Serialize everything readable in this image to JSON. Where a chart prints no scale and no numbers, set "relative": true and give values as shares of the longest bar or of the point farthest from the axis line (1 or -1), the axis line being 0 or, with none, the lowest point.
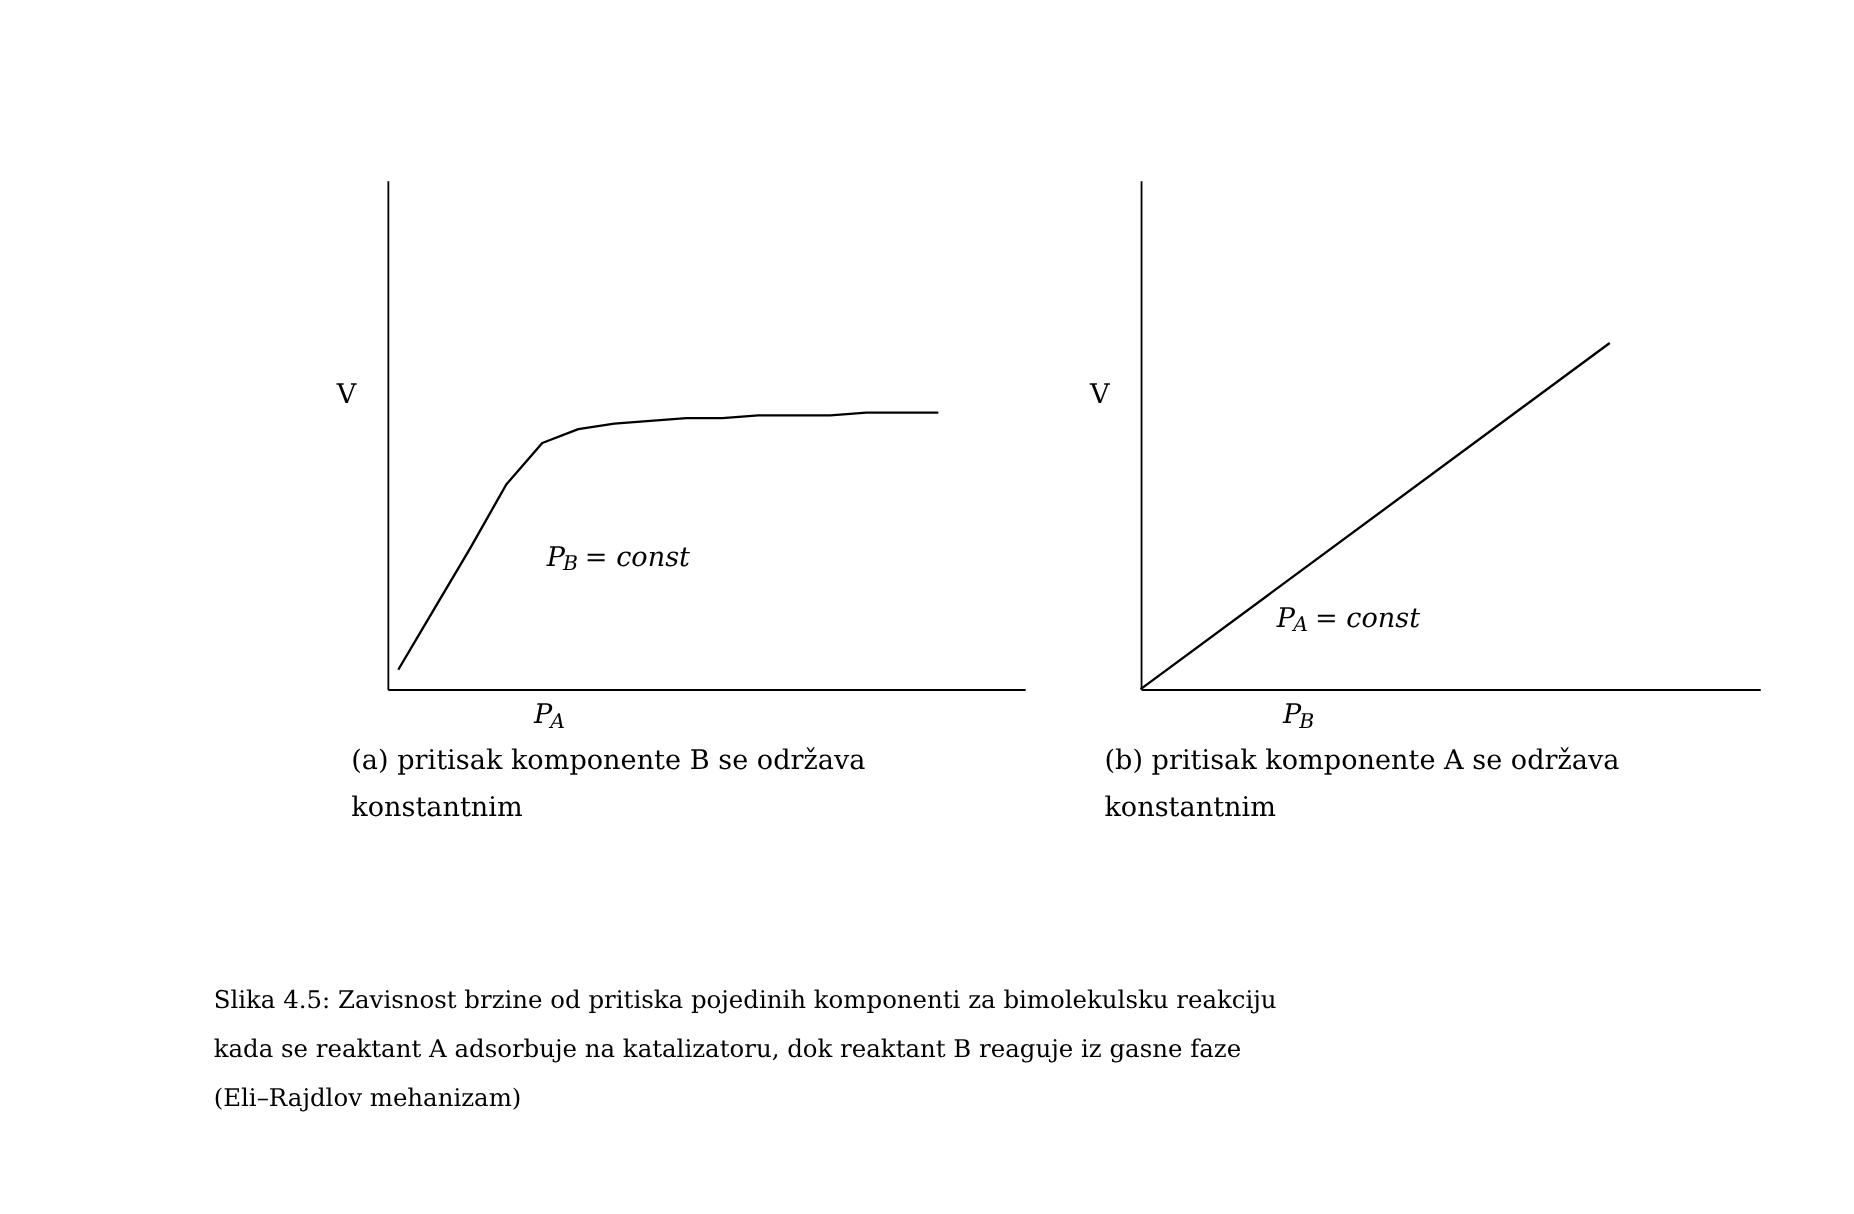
{
  "chart_data": [
    {
      "type": "line",
      "relative": true,
      "color": "#000000",
      "xlabel": "P$_{A}$",
      "ylabel": "V",
      "categories": [
        null,
        null,
        null,
        null,
        null,
        null,
        null,
        null,
        null,
        null,
        null,
        null,
        null,
        null,
        null,
        null
      ],
      "values": [
        0.07,
        0.29,
        0.51,
        0.74,
        0.89,
        0.94,
        0.96,
        0.97,
        0.98,
        0.98,
        0.99,
        0.99,
        0.99,
        1.0,
        1.0,
        1.0
      ],
      "annotations": [
        "P$_{B}$ = const",
        "(a) pritisak komponente B se održava konstantnim"
      ]
    },
    {
      "type": "line",
      "relative": true,
      "color": "#000000",
      "xlabel": "P$_{B}$",
      "ylabel": "V",
      "categories": [
        null,
        null
      ],
      "values": [
        0,
        1.0
      ],
      "annotations": [
        "P$_{A}$ = const",
        "(b) pritisak komponente A se održava konstantnim"
      ]
    },
    {
      "type": "other",
      "annotations": [
        "Slika 4.5: Zavisnost brzine od pritiska pojedinih komponenti za bimolekulsku reakciju kada se reaktant A adsorbuje na katalizatoru, dok reaktant B reaguje iz gasne faze (Eli–Rajdlov mehanizam)"
      ]
    }
  ]
}
